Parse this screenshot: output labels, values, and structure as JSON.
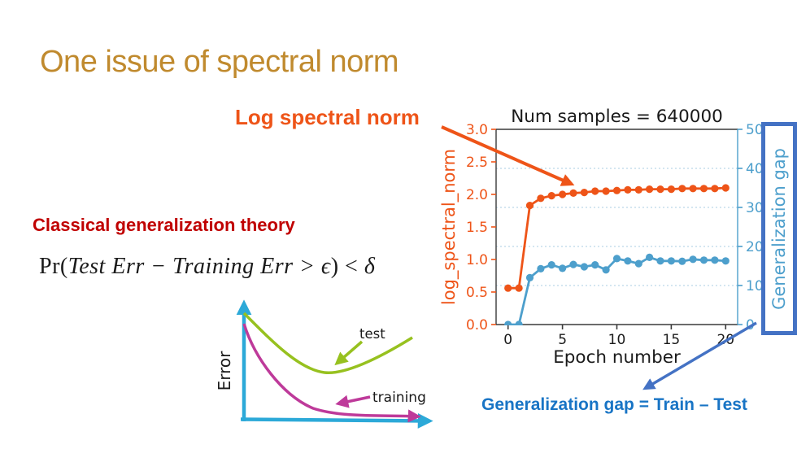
{
  "slide": {
    "title": "One issue of spectral norm",
    "title_color": "#C08A2E",
    "background": "#ffffff"
  },
  "callouts": {
    "log_spectral_norm": {
      "text": "Log spectral norm",
      "color": "#EE5418"
    },
    "classical_theory": {
      "text": "Classical generalization theory",
      "color": "#C00000"
    },
    "formula": {
      "prefix": "Pr(",
      "italic1": "Test Err  − Training Err > ϵ",
      "mid": ") < ",
      "italic2": "δ"
    },
    "gen_gap_equation": {
      "text": "Generalization gap = Train – Test",
      "color": "#1874C5"
    }
  },
  "gen_gap_box": {
    "label": "Generalization gap",
    "border_color": "#4472C4",
    "text_color": "#4D9FCC"
  },
  "chart_data": {
    "type": "line",
    "title": "Num samples = 640000",
    "xlabel": "Epoch number",
    "x": [
      0,
      1,
      2,
      3,
      4,
      5,
      6,
      7,
      8,
      9,
      10,
      11,
      12,
      13,
      14,
      15,
      16,
      17,
      18,
      19,
      20
    ],
    "xticks": [
      0,
      5,
      10,
      15,
      20
    ],
    "xlim": [
      -1.1,
      21.1
    ],
    "grid": {
      "axis": "right",
      "at": [
        10,
        20,
        30,
        40
      ],
      "style": "dashed",
      "color": "#A9CCE3"
    },
    "axes": {
      "left": {
        "label": "log_spectral_norm",
        "range": [
          0,
          3
        ],
        "ticks": [
          "0.0",
          "0.5",
          "1.0",
          "1.5",
          "2.0",
          "2.5",
          "3.0"
        ],
        "color": "#EE5418"
      },
      "right": {
        "label": "Generalization gap",
        "range": [
          0,
          50
        ],
        "ticks": [
          "0",
          "10",
          "20",
          "30",
          "40",
          "50"
        ],
        "color": "#4D9FCC"
      }
    },
    "series": [
      {
        "name": "generalization_gap",
        "axis": "right",
        "color": "#4D9FCC",
        "values": [
          0,
          0,
          12.0,
          14.3,
          15.3,
          14.4,
          15.4,
          14.8,
          15.3,
          14.0,
          16.9,
          16.3,
          15.6,
          17.2,
          16.3,
          16.3,
          16.2,
          16.7,
          16.5,
          16.5,
          16.3
        ]
      },
      {
        "name": "log_spectral_norm",
        "axis": "left",
        "color": "#EE5418",
        "values": [
          0.56,
          0.56,
          1.83,
          1.94,
          1.98,
          2.0,
          2.02,
          2.03,
          2.05,
          2.05,
          2.06,
          2.07,
          2.07,
          2.08,
          2.08,
          2.08,
          2.09,
          2.09,
          2.09,
          2.09,
          2.1
        ]
      }
    ]
  },
  "sketch": {
    "ylabel": "Error",
    "labels": {
      "test": "test",
      "training": "training"
    },
    "colors": {
      "axis": "#2CA9D8",
      "test": "#97C11F",
      "training": "#BE3A9A",
      "text": "#1a1a1a"
    }
  }
}
